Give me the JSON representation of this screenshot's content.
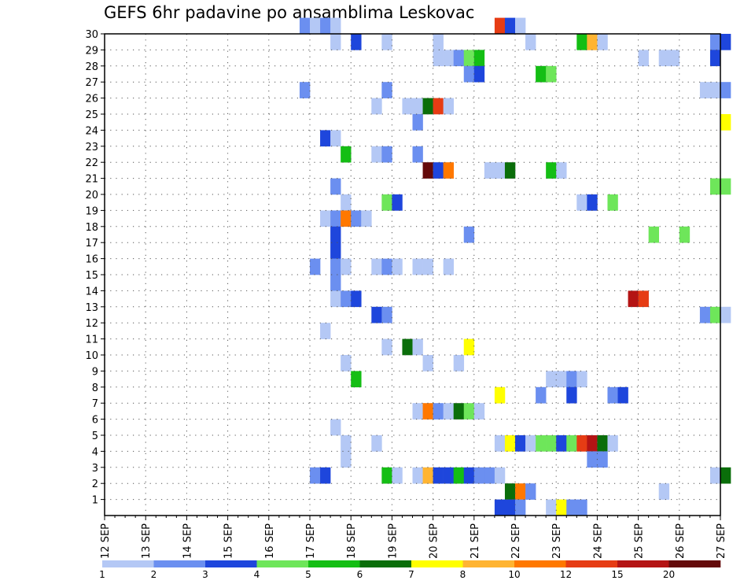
{
  "chart_data": {
    "type": "heatmap",
    "title": "GEFS 6hr padavine po ansamblima Leskovac",
    "xlabel": "",
    "ylabel": "",
    "x_ticks": [
      "12 SEP",
      "13 SEP",
      "14 SEP",
      "15 SEP",
      "16 SEP",
      "17 SEP",
      "18 SEP",
      "19 SEP",
      "20 SEP",
      "21 SEP",
      "22 SEP",
      "23 SEP",
      "24 SEP",
      "25 SEP",
      "26 SEP",
      "27 SEP"
    ],
    "xlim": [
      "12 SEP 00Z",
      "27 SEP 00Z"
    ],
    "time_step_hours": 6,
    "y_ticks": [
      1,
      2,
      3,
      4,
      5,
      6,
      7,
      8,
      9,
      10,
      11,
      12,
      13,
      14,
      15,
      16,
      17,
      18,
      19,
      20,
      21,
      22,
      23,
      24,
      25,
      26,
      27,
      28,
      29,
      30
    ],
    "ylim": [
      0,
      30
    ],
    "grid": true,
    "legend_position": "bottom",
    "levels": [
      "1",
      "2",
      "3",
      "4",
      "5",
      "6",
      "7",
      "8",
      "10",
      "12",
      "15",
      "20"
    ],
    "colors": [
      "#b4c8f5",
      "#6b8ff0",
      "#1e46dc",
      "#6ee65a",
      "#14be14",
      "#0a6e0a",
      "#ffff00",
      "#ffb432",
      "#ff7800",
      "#e63c14",
      "#b41414",
      "#640a0a"
    ],
    "cells": [
      {
        "member": 30,
        "start": "16 SEP 18Z",
        "level": 1
      },
      {
        "member": 30,
        "start": "17 SEP 00Z",
        "level": 0
      },
      {
        "member": 30,
        "start": "17 SEP 06Z",
        "level": 1
      },
      {
        "member": 30,
        "start": "17 SEP 12Z",
        "level": 0
      },
      {
        "member": 30,
        "start": "21 SEP 12Z",
        "level": 9
      },
      {
        "member": 30,
        "start": "21 SEP 18Z",
        "level": 2
      },
      {
        "member": 30,
        "start": "22 SEP 00Z",
        "level": 0
      },
      {
        "member": 29,
        "start": "17 SEP 12Z",
        "level": 0
      },
      {
        "member": 29,
        "start": "18 SEP 00Z",
        "level": 2
      },
      {
        "member": 29,
        "start": "18 SEP 18Z",
        "level": 0
      },
      {
        "member": 29,
        "start": "20 SEP 00Z",
        "level": 0
      },
      {
        "member": 29,
        "start": "22 SEP 06Z",
        "level": 0
      },
      {
        "member": 29,
        "start": "23 SEP 12Z",
        "level": 4
      },
      {
        "member": 29,
        "start": "23 SEP 18Z",
        "level": 7
      },
      {
        "member": 29,
        "start": "24 SEP 00Z",
        "level": 0
      },
      {
        "member": 29,
        "start": "26 SEP 18Z",
        "level": 1
      },
      {
        "member": 29,
        "start": "27 SEP 00Z",
        "level": 2
      },
      {
        "member": 28,
        "start": "20 SEP 00Z",
        "level": 0
      },
      {
        "member": 28,
        "start": "20 SEP 06Z",
        "level": 0
      },
      {
        "member": 28,
        "start": "20 SEP 12Z",
        "level": 1
      },
      {
        "member": 28,
        "start": "20 SEP 18Z",
        "level": 3
      },
      {
        "member": 28,
        "start": "21 SEP 00Z",
        "level": 4
      },
      {
        "member": 28,
        "start": "25 SEP 00Z",
        "level": 0
      },
      {
        "member": 28,
        "start": "25 SEP 12Z",
        "level": 0
      },
      {
        "member": 28,
        "start": "25 SEP 18Z",
        "level": 0
      },
      {
        "member": 28,
        "start": "26 SEP 18Z",
        "level": 2
      },
      {
        "member": 27,
        "start": "20 SEP 18Z",
        "level": 1
      },
      {
        "member": 27,
        "start": "21 SEP 00Z",
        "level": 2
      },
      {
        "member": 27,
        "start": "22 SEP 12Z",
        "level": 4
      },
      {
        "member": 27,
        "start": "22 SEP 18Z",
        "level": 3
      },
      {
        "member": 26,
        "start": "16 SEP 18Z",
        "level": 1
      },
      {
        "member": 26,
        "start": "18 SEP 18Z",
        "level": 1
      },
      {
        "member": 26,
        "start": "26 SEP 12Z",
        "level": 0
      },
      {
        "member": 26,
        "start": "26 SEP 18Z",
        "level": 0
      },
      {
        "member": 26,
        "start": "27 SEP 00Z",
        "level": 1
      },
      {
        "member": 25,
        "start": "18 SEP 12Z",
        "level": 0
      },
      {
        "member": 25,
        "start": "19 SEP 06Z",
        "level": 0
      },
      {
        "member": 25,
        "start": "19 SEP 12Z",
        "level": 0
      },
      {
        "member": 25,
        "start": "19 SEP 18Z",
        "level": 5
      },
      {
        "member": 25,
        "start": "20 SEP 00Z",
        "level": 9
      },
      {
        "member": 25,
        "start": "20 SEP 06Z",
        "level": 0
      },
      {
        "member": 24,
        "start": "19 SEP 12Z",
        "level": 1
      },
      {
        "member": 24,
        "start": "27 SEP 00Z",
        "level": 6
      },
      {
        "member": 23,
        "start": "17 SEP 06Z",
        "level": 2
      },
      {
        "member": 23,
        "start": "17 SEP 12Z",
        "level": 0
      },
      {
        "member": 22,
        "start": "17 SEP 18Z",
        "level": 4
      },
      {
        "member": 22,
        "start": "18 SEP 12Z",
        "level": 0
      },
      {
        "member": 22,
        "start": "18 SEP 18Z",
        "level": 1
      },
      {
        "member": 22,
        "start": "19 SEP 12Z",
        "level": 1
      },
      {
        "member": 21,
        "start": "19 SEP 18Z",
        "level": 11
      },
      {
        "member": 21,
        "start": "20 SEP 00Z",
        "level": 2
      },
      {
        "member": 21,
        "start": "20 SEP 06Z",
        "level": 8
      },
      {
        "member": 21,
        "start": "21 SEP 06Z",
        "level": 0
      },
      {
        "member": 21,
        "start": "21 SEP 12Z",
        "level": 0
      },
      {
        "member": 21,
        "start": "21 SEP 18Z",
        "level": 5
      },
      {
        "member": 21,
        "start": "22 SEP 18Z",
        "level": 4
      },
      {
        "member": 21,
        "start": "23 SEP 00Z",
        "level": 0
      },
      {
        "member": 20,
        "start": "17 SEP 12Z",
        "level": 1
      },
      {
        "member": 20,
        "start": "26 SEP 18Z",
        "level": 3
      },
      {
        "member": 20,
        "start": "27 SEP 00Z",
        "level": 3
      },
      {
        "member": 19,
        "start": "17 SEP 18Z",
        "level": 0
      },
      {
        "member": 19,
        "start": "18 SEP 18Z",
        "level": 3
      },
      {
        "member": 19,
        "start": "19 SEP 00Z",
        "level": 2
      },
      {
        "member": 19,
        "start": "23 SEP 12Z",
        "level": 0
      },
      {
        "member": 19,
        "start": "23 SEP 18Z",
        "level": 2
      },
      {
        "member": 19,
        "start": "24 SEP 06Z",
        "level": 3
      },
      {
        "member": 18,
        "start": "17 SEP 06Z",
        "level": 0
      },
      {
        "member": 18,
        "start": "17 SEP 12Z",
        "level": 1
      },
      {
        "member": 18,
        "start": "17 SEP 18Z",
        "level": 8
      },
      {
        "member": 18,
        "start": "18 SEP 00Z",
        "level": 1
      },
      {
        "member": 18,
        "start": "18 SEP 06Z",
        "level": 0
      },
      {
        "member": 17,
        "start": "17 SEP 12Z",
        "level": 2
      },
      {
        "member": 17,
        "start": "20 SEP 18Z",
        "level": 1
      },
      {
        "member": 17,
        "start": "25 SEP 06Z",
        "level": 3
      },
      {
        "member": 17,
        "start": "26 SEP 00Z",
        "level": 3
      },
      {
        "member": 16,
        "start": "17 SEP 12Z",
        "level": 2
      },
      {
        "member": 15,
        "start": "17 SEP 00Z",
        "level": 1
      },
      {
        "member": 15,
        "start": "17 SEP 12Z",
        "level": 1
      },
      {
        "member": 15,
        "start": "17 SEP 18Z",
        "level": 0
      },
      {
        "member": 15,
        "start": "18 SEP 12Z",
        "level": 0
      },
      {
        "member": 15,
        "start": "18 SEP 18Z",
        "level": 1
      },
      {
        "member": 15,
        "start": "19 SEP 00Z",
        "level": 0
      },
      {
        "member": 15,
        "start": "19 SEP 12Z",
        "level": 0
      },
      {
        "member": 15,
        "start": "19 SEP 18Z",
        "level": 0
      },
      {
        "member": 15,
        "start": "20 SEP 06Z",
        "level": 0
      },
      {
        "member": 14,
        "start": "17 SEP 12Z",
        "level": 1
      },
      {
        "member": 13,
        "start": "17 SEP 12Z",
        "level": 0
      },
      {
        "member": 13,
        "start": "17 SEP 18Z",
        "level": 1
      },
      {
        "member": 13,
        "start": "18 SEP 00Z",
        "level": 2
      },
      {
        "member": 13,
        "start": "24 SEP 18Z",
        "level": 10
      },
      {
        "member": 13,
        "start": "25 SEP 00Z",
        "level": 9
      },
      {
        "member": 12,
        "start": "18 SEP 12Z",
        "level": 2
      },
      {
        "member": 12,
        "start": "18 SEP 18Z",
        "level": 1
      },
      {
        "member": 12,
        "start": "26 SEP 12Z",
        "level": 1
      },
      {
        "member": 12,
        "start": "26 SEP 18Z",
        "level": 3
      },
      {
        "member": 12,
        "start": "27 SEP 00Z",
        "level": 0
      },
      {
        "member": 11,
        "start": "17 SEP 06Z",
        "level": 0
      },
      {
        "member": 10,
        "start": "18 SEP 18Z",
        "level": 0
      },
      {
        "member": 10,
        "start": "19 SEP 06Z",
        "level": 5
      },
      {
        "member": 10,
        "start": "19 SEP 12Z",
        "level": 0
      },
      {
        "member": 10,
        "start": "20 SEP 18Z",
        "level": 6
      },
      {
        "member": 9,
        "start": "17 SEP 18Z",
        "level": 0
      },
      {
        "member": 9,
        "start": "19 SEP 18Z",
        "level": 0
      },
      {
        "member": 9,
        "start": "20 SEP 12Z",
        "level": 0
      },
      {
        "member": 8,
        "start": "18 SEP 00Z",
        "level": 4
      },
      {
        "member": 8,
        "start": "22 SEP 18Z",
        "level": 0
      },
      {
        "member": 8,
        "start": "23 SEP 00Z",
        "level": 0
      },
      {
        "member": 8,
        "start": "23 SEP 06Z",
        "level": 1
      },
      {
        "member": 8,
        "start": "23 SEP 12Z",
        "level": 0
      },
      {
        "member": 7,
        "start": "21 SEP 12Z",
        "level": 6
      },
      {
        "member": 7,
        "start": "22 SEP 12Z",
        "level": 1
      },
      {
        "member": 7,
        "start": "23 SEP 06Z",
        "level": 2
      },
      {
        "member": 7,
        "start": "24 SEP 06Z",
        "level": 1
      },
      {
        "member": 7,
        "start": "24 SEP 12Z",
        "level": 2
      },
      {
        "member": 6,
        "start": "19 SEP 12Z",
        "level": 0
      },
      {
        "member": 6,
        "start": "19 SEP 18Z",
        "level": 8
      },
      {
        "member": 6,
        "start": "20 SEP 00Z",
        "level": 1
      },
      {
        "member": 6,
        "start": "20 SEP 06Z",
        "level": 0
      },
      {
        "member": 6,
        "start": "20 SEP 12Z",
        "level": 5
      },
      {
        "member": 6,
        "start": "20 SEP 18Z",
        "level": 3
      },
      {
        "member": 6,
        "start": "21 SEP 00Z",
        "level": 0
      },
      {
        "member": 5,
        "start": "17 SEP 12Z",
        "level": 0
      },
      {
        "member": 4,
        "start": "17 SEP 18Z",
        "level": 0
      },
      {
        "member": 4,
        "start": "18 SEP 12Z",
        "level": 0
      },
      {
        "member": 4,
        "start": "21 SEP 12Z",
        "level": 0
      },
      {
        "member": 4,
        "start": "21 SEP 18Z",
        "level": 6
      },
      {
        "member": 4,
        "start": "22 SEP 00Z",
        "level": 2
      },
      {
        "member": 4,
        "start": "22 SEP 06Z",
        "level": 0
      },
      {
        "member": 4,
        "start": "22 SEP 12Z",
        "level": 3
      },
      {
        "member": 4,
        "start": "22 SEP 18Z",
        "level": 3
      },
      {
        "member": 4,
        "start": "23 SEP 00Z",
        "level": 2
      },
      {
        "member": 4,
        "start": "23 SEP 06Z",
        "level": 3
      },
      {
        "member": 4,
        "start": "23 SEP 12Z",
        "level": 9
      },
      {
        "member": 4,
        "start": "23 SEP 18Z",
        "level": 10
      },
      {
        "member": 4,
        "start": "24 SEP 00Z",
        "level": 5
      },
      {
        "member": 4,
        "start": "24 SEP 06Z",
        "level": 0
      },
      {
        "member": 3,
        "start": "17 SEP 18Z",
        "level": 0
      },
      {
        "member": 3,
        "start": "23 SEP 18Z",
        "level": 1
      },
      {
        "member": 3,
        "start": "24 SEP 00Z",
        "level": 1
      },
      {
        "member": 2,
        "start": "17 SEP 00Z",
        "level": 1
      },
      {
        "member": 2,
        "start": "17 SEP 06Z",
        "level": 2
      },
      {
        "member": 2,
        "start": "18 SEP 18Z",
        "level": 4
      },
      {
        "member": 2,
        "start": "19 SEP 00Z",
        "level": 0
      },
      {
        "member": 2,
        "start": "19 SEP 12Z",
        "level": 0
      },
      {
        "member": 2,
        "start": "19 SEP 18Z",
        "level": 7
      },
      {
        "member": 2,
        "start": "20 SEP 00Z",
        "level": 2
      },
      {
        "member": 2,
        "start": "20 SEP 06Z",
        "level": 2
      },
      {
        "member": 2,
        "start": "20 SEP 12Z",
        "level": 4
      },
      {
        "member": 2,
        "start": "20 SEP 18Z",
        "level": 2
      },
      {
        "member": 2,
        "start": "21 SEP 00Z",
        "level": 1
      },
      {
        "member": 2,
        "start": "21 SEP 06Z",
        "level": 1
      },
      {
        "member": 2,
        "start": "21 SEP 12Z",
        "level": 0
      },
      {
        "member": 2,
        "start": "26 SEP 18Z",
        "level": 0
      },
      {
        "member": 2,
        "start": "27 SEP 00Z",
        "level": 5
      },
      {
        "member": 1,
        "start": "21 SEP 18Z",
        "level": 5
      },
      {
        "member": 1,
        "start": "22 SEP 00Z",
        "level": 8
      },
      {
        "member": 1,
        "start": "22 SEP 06Z",
        "level": 1
      },
      {
        "member": 1,
        "start": "25 SEP 12Z",
        "level": 0
      },
      {
        "member": 0,
        "start": "21 SEP 12Z",
        "level": 2
      },
      {
        "member": 0,
        "start": "21 SEP 18Z",
        "level": 2
      },
      {
        "member": 0,
        "start": "22 SEP 00Z",
        "level": 1
      },
      {
        "member": 0,
        "start": "22 SEP 18Z",
        "level": 0
      },
      {
        "member": 0,
        "start": "23 SEP 00Z",
        "level": 6
      },
      {
        "member": 0,
        "start": "23 SEP 06Z",
        "level": 1
      },
      {
        "member": 0,
        "start": "23 SEP 12Z",
        "level": 1
      }
    ]
  }
}
